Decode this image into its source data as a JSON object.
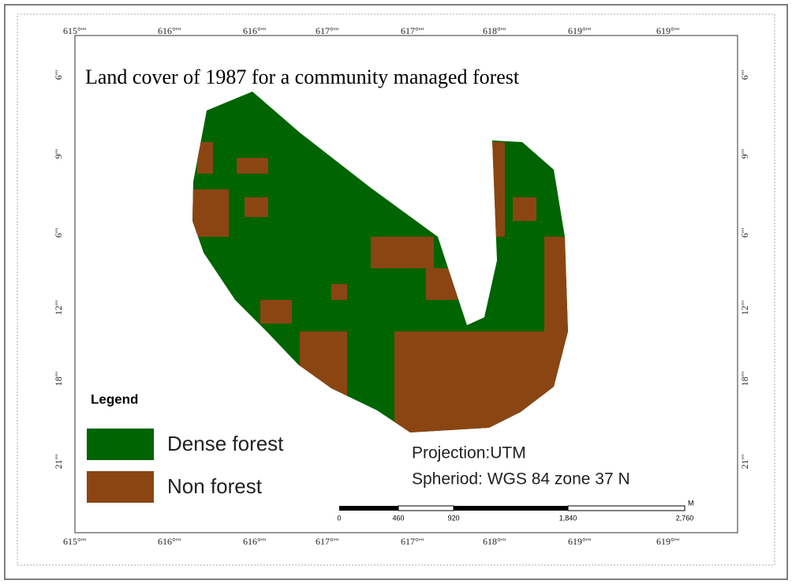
{
  "title": "Land cover of 1987  for a community managed forest",
  "top_labels": [
    "615°'''",
    "616°'''",
    "616°'''",
    "617°'''",
    "617°'''",
    "618°'''",
    "619°'''",
    "619°'''"
  ],
  "bottom_labels": [
    "615°'''",
    "616°'''",
    "616°'''",
    "617°'''",
    "617°'''",
    "618°'''",
    "619°'''",
    "619°'''"
  ],
  "left_labels": [
    "6'''",
    "9'''",
    "6'''",
    "12'''",
    "18'''",
    "21'''"
  ],
  "right_labels": [
    "6'''",
    "9'''",
    "6'''",
    "12'''",
    "18'''",
    "21'''"
  ],
  "legend": {
    "title": "Legend",
    "items": [
      {
        "label": "Dense forest",
        "color": "#006400"
      },
      {
        "label": "Non forest",
        "color": "#8b4513"
      }
    ]
  },
  "projection": "Projection:UTM",
  "spheroid": "Spheriod: WGS 84 zone 37 N",
  "scale_bar": {
    "labels": [
      "0",
      "460",
      "920",
      "1,840",
      "2,760"
    ],
    "unit": "M"
  }
}
